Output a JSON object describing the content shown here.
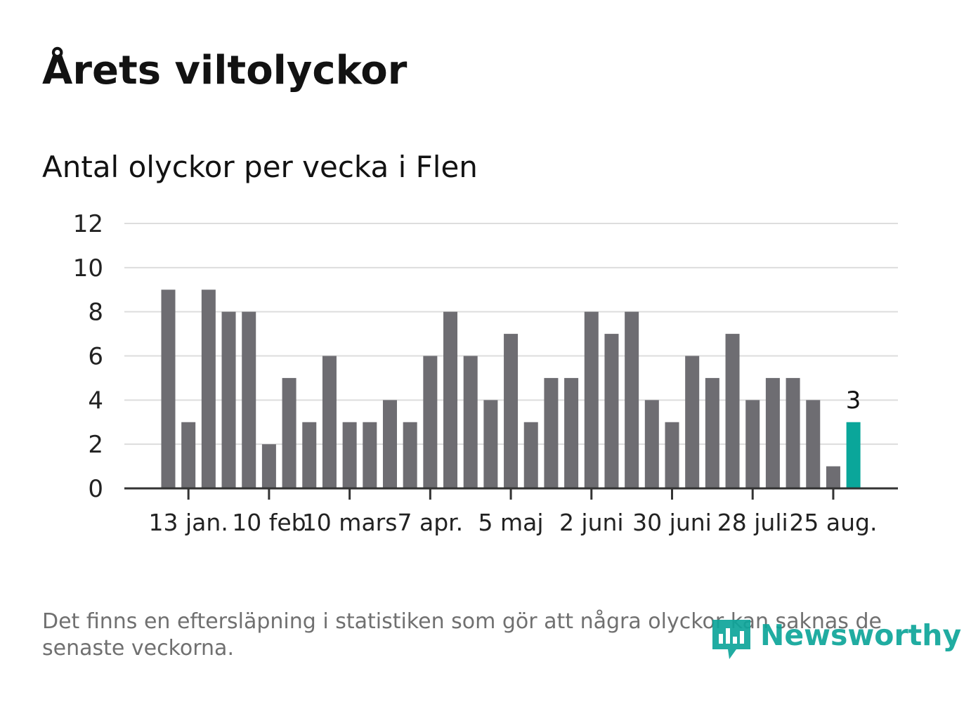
{
  "title": "Årets viltolyckor",
  "subtitle": "Antal olyckor per vecka i Flen",
  "footnote": "Det finns en eftersläpning i statistiken som gör att några olyckor kan saknas de senaste veckorna.",
  "brand": {
    "name": "Newsworthy",
    "color": "#0ea59a",
    "icon": "newsworthy-logo-icon"
  },
  "colors": {
    "bar": "#6e6d72",
    "highlight": "#0aa69a",
    "grid": "#dddddd",
    "axis": "#333333"
  },
  "chart_data": {
    "type": "bar",
    "title": "Antal olyckor per vecka i Flen",
    "xlabel": "",
    "ylabel": "",
    "ylim": [
      0,
      12
    ],
    "yticks": [
      0,
      2,
      4,
      6,
      8,
      10,
      12
    ],
    "grid": true,
    "xtick_labels": [
      "13 jan.",
      "10 feb",
      "10 mars",
      "7 apr.",
      "5 maj",
      "2 juni",
      "30 juni",
      "28 juli",
      "25 aug."
    ],
    "values": [
      9,
      3,
      9,
      8,
      8,
      2,
      5,
      3,
      6,
      3,
      3,
      4,
      3,
      6,
      8,
      6,
      4,
      7,
      3,
      5,
      5,
      8,
      7,
      8,
      4,
      3,
      6,
      5,
      7,
      4,
      5,
      5,
      4,
      1,
      3
    ],
    "highlight_last": true,
    "annotations": [
      {
        "value": "3"
      }
    ]
  }
}
